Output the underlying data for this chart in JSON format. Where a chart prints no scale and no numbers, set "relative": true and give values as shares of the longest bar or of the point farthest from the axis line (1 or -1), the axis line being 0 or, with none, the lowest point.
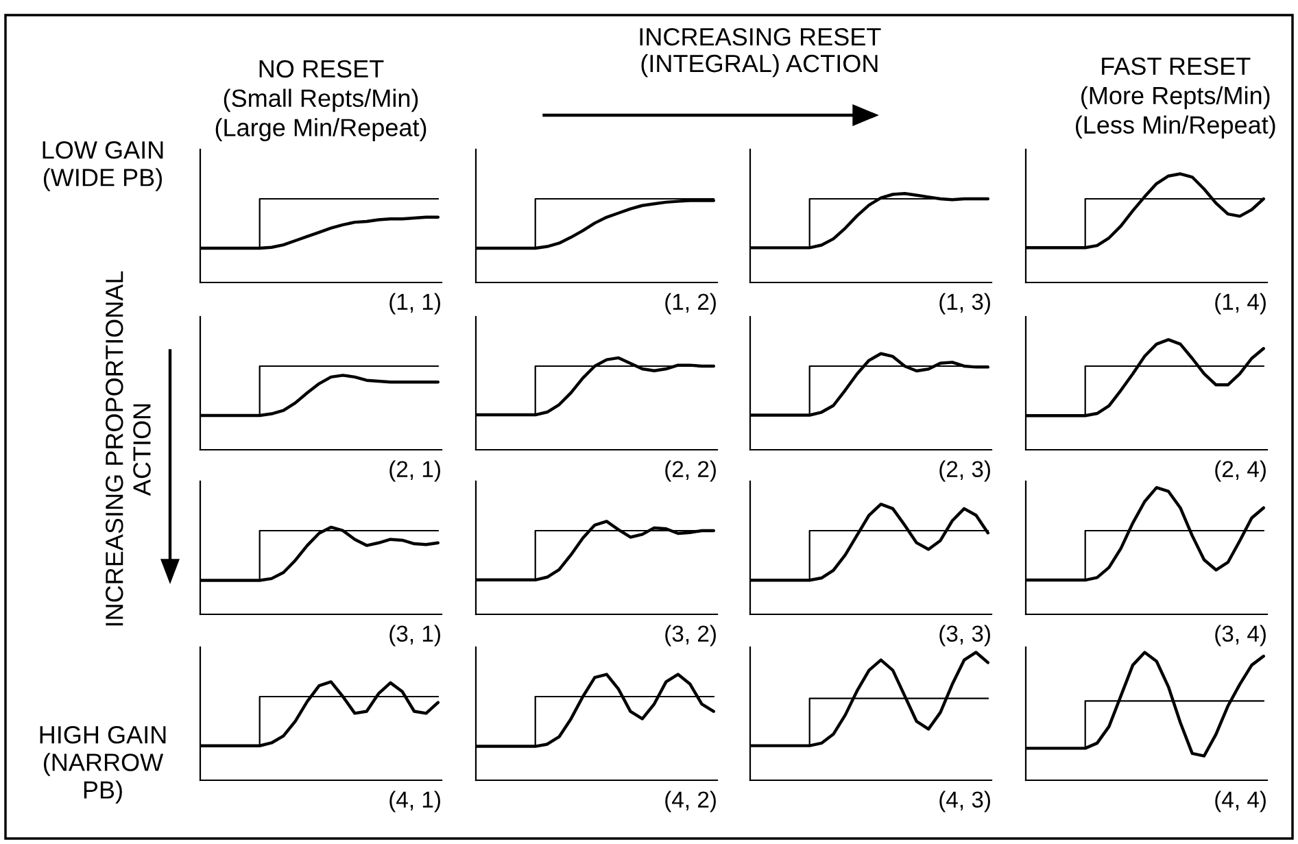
{
  "chart_data": [
    {
      "type": "line",
      "relative": true,
      "title": "NO RESET\n(Small Repts/Min)\n(Large Min/Repeat)",
      "annotations": [
        "(1, 1)",
        "LOW GAIN\n(WIDE PB)"
      ],
      "categories": [
        null,
        null,
        null,
        null,
        null,
        null,
        null,
        null,
        null,
        null,
        null,
        null,
        null,
        null,
        null,
        null,
        null,
        null,
        null,
        null,
        null
      ],
      "series": [
        {
          "type": "step",
          "color": "#000000",
          "values": [
            null,
            null,
            null,
            null,
            0.41,
            1,
            1,
            1,
            1,
            1,
            1,
            1,
            1,
            1,
            1,
            1,
            1,
            1,
            1,
            1,
            1
          ]
        },
        {
          "type": "line",
          "color": "#000000",
          "values": [
            0.41,
            0.41,
            0.41,
            0.41,
            0.41,
            0.41,
            0.42,
            0.45,
            0.5,
            0.55,
            0.6,
            0.65,
            0.69,
            0.72,
            0.73,
            0.75,
            0.76,
            0.76,
            0.77,
            0.78,
            0.78
          ]
        }
      ]
    },
    {
      "type": "line",
      "relative": true,
      "title": "INCREASING RESET\n(INTEGRAL) ACTION",
      "annotations": [
        "(1, 2)"
      ],
      "categories": [
        null,
        null,
        null,
        null,
        null,
        null,
        null,
        null,
        null,
        null,
        null,
        null,
        null,
        null,
        null,
        null,
        null,
        null,
        null,
        null,
        null
      ],
      "series": [
        {
          "type": "step",
          "color": "#000000",
          "values": [
            null,
            null,
            null,
            null,
            0.41,
            1,
            1,
            1,
            1,
            1,
            1,
            1,
            1,
            1,
            1,
            1,
            1,
            1,
            1,
            1,
            1
          ]
        },
        {
          "type": "line",
          "color": "#000000",
          "values": [
            0.41,
            0.41,
            0.41,
            0.41,
            0.41,
            0.41,
            0.43,
            0.47,
            0.54,
            0.62,
            0.71,
            0.78,
            0.83,
            0.88,
            0.92,
            0.94,
            0.96,
            0.97,
            0.98,
            0.98,
            0.98
          ]
        }
      ]
    },
    {
      "type": "line",
      "relative": true,
      "annotations": [
        "(1, 3)"
      ],
      "categories": [
        null,
        null,
        null,
        null,
        null,
        null,
        null,
        null,
        null,
        null,
        null,
        null,
        null,
        null,
        null,
        null,
        null,
        null,
        null,
        null,
        null
      ],
      "series": [
        {
          "type": "step",
          "color": "#000000",
          "values": [
            null,
            null,
            null,
            null,
            0.39,
            0.94,
            0.94,
            0.94,
            0.94,
            0.94,
            0.94,
            0.94,
            0.94,
            0.94,
            0.94,
            0.94,
            0.94,
            0.94,
            0.94,
            0.94,
            0.94
          ]
        },
        {
          "type": "line",
          "color": "#000000",
          "values": [
            0.39,
            0.39,
            0.39,
            0.39,
            0.39,
            0.39,
            0.42,
            0.49,
            0.61,
            0.75,
            0.87,
            0.95,
            0.99,
            1.0,
            0.98,
            0.96,
            0.94,
            0.93,
            0.94,
            0.94,
            0.94
          ]
        }
      ]
    },
    {
      "type": "line",
      "relative": true,
      "title": "FAST RESET\n(More Repts/Min)\n(Less Min/Repeat)",
      "annotations": [
        "(1, 4)"
      ],
      "categories": [
        null,
        null,
        null,
        null,
        null,
        null,
        null,
        null,
        null,
        null,
        null,
        null,
        null,
        null,
        null,
        null,
        null,
        null,
        null,
        null,
        null
      ],
      "series": [
        {
          "type": "step",
          "color": "#000000",
          "values": [
            null,
            null,
            null,
            null,
            0.32,
            0.77,
            0.77,
            0.77,
            0.77,
            0.77,
            0.77,
            0.77,
            0.77,
            0.77,
            0.77,
            0.77,
            0.77,
            0.77,
            0.77,
            0.77,
            0.77
          ]
        },
        {
          "type": "line",
          "color": "#000000",
          "values": [
            0.32,
            0.32,
            0.32,
            0.32,
            0.32,
            0.32,
            0.34,
            0.41,
            0.52,
            0.66,
            0.79,
            0.91,
            0.98,
            1.0,
            0.97,
            0.86,
            0.73,
            0.63,
            0.61,
            0.67,
            0.77
          ]
        }
      ]
    },
    {
      "type": "line",
      "relative": true,
      "ylabel": "INCREASING PROPORTIONAL\nACTION",
      "annotations": [
        "(2, 1)"
      ],
      "categories": [
        null,
        null,
        null,
        null,
        null,
        null,
        null,
        null,
        null,
        null,
        null,
        null,
        null,
        null,
        null,
        null,
        null,
        null,
        null,
        null,
        null
      ],
      "series": [
        {
          "type": "step",
          "color": "#000000",
          "values": [
            null,
            null,
            null,
            null,
            0.41,
            1,
            1,
            1,
            1,
            1,
            1,
            1,
            1,
            1,
            1,
            1,
            1,
            1,
            1,
            1,
            1
          ]
        },
        {
          "type": "line",
          "color": "#000000",
          "values": [
            0.41,
            0.41,
            0.41,
            0.41,
            0.41,
            0.41,
            0.43,
            0.47,
            0.56,
            0.68,
            0.79,
            0.87,
            0.89,
            0.87,
            0.83,
            0.82,
            0.81,
            0.81,
            0.81,
            0.81,
            0.81
          ]
        }
      ]
    },
    {
      "type": "line",
      "relative": true,
      "annotations": [
        "(2, 2)"
      ],
      "categories": [
        null,
        null,
        null,
        null,
        null,
        null,
        null,
        null,
        null,
        null,
        null,
        null,
        null,
        null,
        null,
        null,
        null,
        null,
        null,
        null,
        null
      ],
      "series": [
        {
          "type": "step",
          "color": "#000000",
          "values": [
            null,
            null,
            null,
            null,
            0.38,
            0.91,
            0.91,
            0.91,
            0.91,
            0.91,
            0.91,
            0.91,
            0.91,
            0.91,
            0.91,
            0.91,
            0.91,
            0.91,
            0.91,
            0.91,
            0.91
          ]
        },
        {
          "type": "line",
          "color": "#000000",
          "values": [
            0.38,
            0.38,
            0.38,
            0.38,
            0.38,
            0.38,
            0.41,
            0.49,
            0.62,
            0.78,
            0.91,
            0.98,
            1.0,
            0.94,
            0.88,
            0.86,
            0.88,
            0.92,
            0.92,
            0.91,
            0.91
          ]
        }
      ]
    },
    {
      "type": "line",
      "relative": true,
      "annotations": [
        "(2, 3)"
      ],
      "categories": [
        null,
        null,
        null,
        null,
        null,
        null,
        null,
        null,
        null,
        null,
        null,
        null,
        null,
        null,
        null,
        null,
        null,
        null,
        null,
        null,
        null
      ],
      "series": [
        {
          "type": "step",
          "color": "#000000",
          "values": [
            null,
            null,
            null,
            null,
            0.36,
            0.87,
            0.87,
            0.87,
            0.87,
            0.87,
            0.87,
            0.87,
            0.87,
            0.87,
            0.87,
            0.87,
            0.87,
            0.87,
            0.87,
            0.87,
            0.87
          ]
        },
        {
          "type": "line",
          "color": "#000000",
          "values": [
            0.36,
            0.36,
            0.36,
            0.36,
            0.36,
            0.36,
            0.39,
            0.46,
            0.62,
            0.79,
            0.93,
            1.0,
            0.97,
            0.87,
            0.82,
            0.84,
            0.9,
            0.91,
            0.87,
            0.86,
            0.86
          ]
        }
      ]
    },
    {
      "type": "line",
      "relative": true,
      "annotations": [
        "(2, 4)"
      ],
      "categories": [
        null,
        null,
        null,
        null,
        null,
        null,
        null,
        null,
        null,
        null,
        null,
        null,
        null,
        null,
        null,
        null,
        null,
        null,
        null,
        null,
        null
      ],
      "series": [
        {
          "type": "step",
          "color": "#000000",
          "values": [
            null,
            null,
            null,
            null,
            0.31,
            0.76,
            0.76,
            0.76,
            0.76,
            0.76,
            0.76,
            0.76,
            0.76,
            0.76,
            0.76,
            0.76,
            0.76,
            0.76,
            0.76,
            0.76,
            0.76
          ]
        },
        {
          "type": "line",
          "color": "#000000",
          "values": [
            0.31,
            0.31,
            0.31,
            0.31,
            0.31,
            0.31,
            0.33,
            0.4,
            0.54,
            0.69,
            0.85,
            0.96,
            1.0,
            0.96,
            0.83,
            0.69,
            0.59,
            0.59,
            0.69,
            0.83,
            0.92
          ]
        }
      ]
    },
    {
      "type": "line",
      "relative": true,
      "annotations": [
        "(3, 1)"
      ],
      "categories": [
        null,
        null,
        null,
        null,
        null,
        null,
        null,
        null,
        null,
        null,
        null,
        null,
        null,
        null,
        null,
        null,
        null,
        null,
        null,
        null,
        null
      ],
      "series": [
        {
          "type": "step",
          "color": "#000000",
          "values": [
            null,
            null,
            null,
            null,
            0.39,
            0.96,
            0.96,
            0.96,
            0.96,
            0.96,
            0.96,
            0.96,
            0.96,
            0.96,
            0.96,
            0.96,
            0.96,
            0.96,
            0.96,
            0.96,
            0.96
          ]
        },
        {
          "type": "line",
          "color": "#000000",
          "values": [
            0.39,
            0.39,
            0.39,
            0.39,
            0.39,
            0.39,
            0.41,
            0.48,
            0.62,
            0.79,
            0.93,
            1.0,
            0.96,
            0.86,
            0.79,
            0.82,
            0.86,
            0.85,
            0.81,
            0.8,
            0.82
          ]
        }
      ]
    },
    {
      "type": "line",
      "relative": true,
      "annotations": [
        "(3, 2)"
      ],
      "categories": [
        null,
        null,
        null,
        null,
        null,
        null,
        null,
        null,
        null,
        null,
        null,
        null,
        null,
        null,
        null,
        null,
        null,
        null,
        null,
        null,
        null
      ],
      "series": [
        {
          "type": "step",
          "color": "#000000",
          "values": [
            null,
            null,
            null,
            null,
            0.37,
            0.9,
            0.9,
            0.9,
            0.9,
            0.9,
            0.9,
            0.9,
            0.9,
            0.9,
            0.9,
            0.9,
            0.9,
            0.9,
            0.9,
            0.9,
            0.9
          ]
        },
        {
          "type": "line",
          "color": "#000000",
          "values": [
            0.37,
            0.37,
            0.37,
            0.37,
            0.37,
            0.37,
            0.4,
            0.48,
            0.64,
            0.82,
            0.96,
            1.0,
            0.91,
            0.83,
            0.86,
            0.93,
            0.92,
            0.87,
            0.88,
            0.9,
            0.9
          ]
        }
      ]
    },
    {
      "type": "line",
      "relative": true,
      "annotations": [
        "(3, 3)"
      ],
      "categories": [
        null,
        null,
        null,
        null,
        null,
        null,
        null,
        null,
        null,
        null,
        null,
        null,
        null,
        null,
        null,
        null,
        null,
        null,
        null,
        null,
        null
      ],
      "series": [
        {
          "type": "step",
          "color": "#000000",
          "values": [
            null,
            null,
            null,
            null,
            0.31,
            0.76,
            0.76,
            0.76,
            0.76,
            0.76,
            0.76,
            0.76,
            0.76,
            0.76,
            0.76,
            0.76,
            0.76,
            0.76,
            0.76,
            0.76,
            0.76
          ]
        },
        {
          "type": "line",
          "color": "#000000",
          "values": [
            0.31,
            0.31,
            0.31,
            0.31,
            0.31,
            0.31,
            0.33,
            0.4,
            0.54,
            0.72,
            0.9,
            1.0,
            0.96,
            0.81,
            0.65,
            0.59,
            0.67,
            0.85,
            0.96,
            0.9,
            0.74
          ]
        }
      ]
    },
    {
      "type": "line",
      "relative": true,
      "annotations": [
        "(3, 4)"
      ],
      "categories": [
        null,
        null,
        null,
        null,
        null,
        null,
        null,
        null,
        null,
        null,
        null,
        null,
        null,
        null,
        null,
        null,
        null,
        null,
        null,
        null,
        null
      ],
      "series": [
        {
          "type": "step",
          "color": "#000000",
          "values": [
            null,
            null,
            null,
            null,
            0.27,
            0.66,
            0.66,
            0.66,
            0.66,
            0.66,
            0.66,
            0.66,
            0.66,
            0.66,
            0.66,
            0.66,
            0.66,
            0.66,
            0.66,
            0.66,
            0.66
          ]
        },
        {
          "type": "line",
          "color": "#000000",
          "values": [
            0.27,
            0.27,
            0.27,
            0.27,
            0.27,
            0.27,
            0.29,
            0.37,
            0.52,
            0.72,
            0.89,
            1.0,
            0.97,
            0.84,
            0.62,
            0.43,
            0.35,
            0.41,
            0.58,
            0.76,
            0.84
          ]
        }
      ]
    },
    {
      "type": "line",
      "relative": true,
      "annotations": [
        "(4, 1)",
        "HIGH GAIN\n(NARROW\nPB)"
      ],
      "categories": [
        null,
        null,
        null,
        null,
        null,
        null,
        null,
        null,
        null,
        null,
        null,
        null,
        null,
        null,
        null,
        null,
        null,
        null,
        null,
        null,
        null
      ],
      "series": [
        {
          "type": "step",
          "color": "#000000",
          "values": [
            null,
            null,
            null,
            null,
            0.35,
            0.85,
            0.85,
            0.85,
            0.85,
            0.85,
            0.85,
            0.85,
            0.85,
            0.85,
            0.85,
            0.85,
            0.85,
            0.85,
            0.85,
            0.85,
            0.85
          ]
        },
        {
          "type": "line",
          "color": "#000000",
          "values": [
            0.35,
            0.35,
            0.35,
            0.35,
            0.35,
            0.35,
            0.38,
            0.45,
            0.6,
            0.8,
            0.96,
            1.0,
            0.85,
            0.68,
            0.7,
            0.88,
            0.99,
            0.9,
            0.7,
            0.68,
            0.79
          ]
        }
      ]
    },
    {
      "type": "line",
      "relative": true,
      "annotations": [
        "(4, 2)"
      ],
      "categories": [
        null,
        null,
        null,
        null,
        null,
        null,
        null,
        null,
        null,
        null,
        null,
        null,
        null,
        null,
        null,
        null,
        null,
        null,
        null,
        null,
        null
      ],
      "series": [
        {
          "type": "step",
          "color": "#000000",
          "values": [
            null,
            null,
            null,
            null,
            0.32,
            0.79,
            0.79,
            0.79,
            0.79,
            0.79,
            0.79,
            0.79,
            0.79,
            0.79,
            0.79,
            0.79,
            0.79,
            0.79,
            0.79,
            0.79,
            0.79
          ]
        },
        {
          "type": "line",
          "color": "#000000",
          "values": [
            0.32,
            0.32,
            0.32,
            0.32,
            0.32,
            0.32,
            0.34,
            0.41,
            0.58,
            0.79,
            0.97,
            1.0,
            0.86,
            0.65,
            0.58,
            0.72,
            0.93,
            1.0,
            0.91,
            0.72,
            0.65
          ]
        }
      ]
    },
    {
      "type": "line",
      "relative": true,
      "annotations": [
        "(4, 3)"
      ],
      "categories": [
        null,
        null,
        null,
        null,
        null,
        null,
        null,
        null,
        null,
        null,
        null,
        null,
        null,
        null,
        null,
        null,
        null,
        null,
        null,
        null,
        null
      ],
      "series": [
        {
          "type": "step",
          "color": "#000000",
          "values": [
            null,
            null,
            null,
            null,
            0.27,
            0.64,
            0.64,
            0.64,
            0.64,
            0.64,
            0.64,
            0.64,
            0.64,
            0.64,
            0.64,
            0.64,
            0.64,
            0.64,
            0.64,
            0.64,
            0.64
          ]
        },
        {
          "type": "line",
          "color": "#000000",
          "values": [
            0.27,
            0.27,
            0.27,
            0.27,
            0.27,
            0.27,
            0.29,
            0.36,
            0.51,
            0.7,
            0.86,
            0.94,
            0.86,
            0.66,
            0.46,
            0.4,
            0.53,
            0.75,
            0.94,
            1.0,
            0.92
          ]
        }
      ]
    },
    {
      "type": "line",
      "relative": true,
      "annotations": [
        "(4, 4)"
      ],
      "categories": [
        null,
        null,
        null,
        null,
        null,
        null,
        null,
        null,
        null,
        null,
        null,
        null,
        null,
        null,
        null,
        null,
        null,
        null,
        null,
        null,
        null
      ],
      "series": [
        {
          "type": "step",
          "color": "#000000",
          "values": [
            null,
            null,
            null,
            null,
            0.25,
            0.62,
            0.62,
            0.62,
            0.62,
            0.62,
            0.62,
            0.62,
            0.62,
            0.62,
            0.62,
            0.62,
            0.62,
            0.62,
            0.62,
            0.62,
            0.62
          ]
        },
        {
          "type": "line",
          "color": "#000000",
          "values": [
            0.25,
            0.25,
            0.25,
            0.25,
            0.25,
            0.25,
            0.29,
            0.42,
            0.66,
            0.9,
            1.0,
            0.93,
            0.73,
            0.45,
            0.21,
            0.19,
            0.36,
            0.58,
            0.75,
            0.9,
            0.97
          ]
        }
      ]
    }
  ]
}
